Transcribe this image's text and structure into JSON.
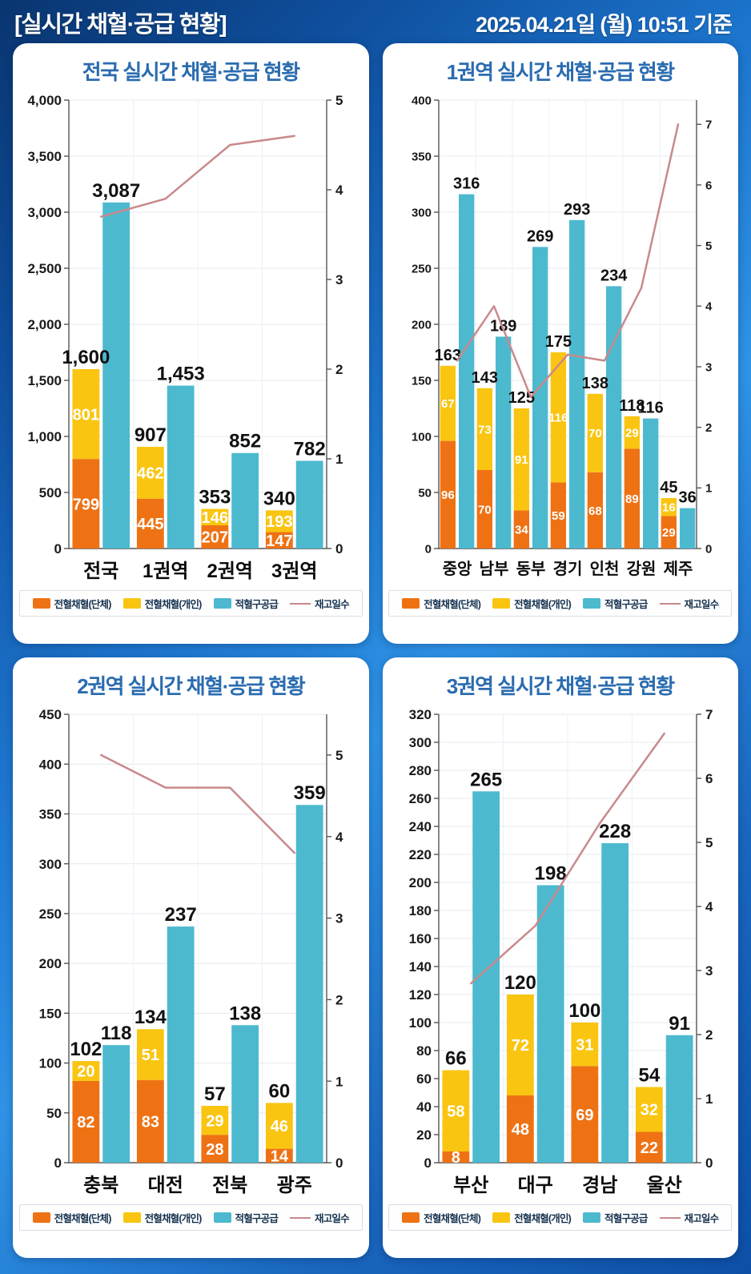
{
  "header": {
    "title": "[실시간 채혈·공급 현황]",
    "datetime": "2025.04.21일 (월) 10:51 기준"
  },
  "colors": {
    "group_collection": "#ee7214",
    "individual_collection": "#f9c511",
    "rbc_supply": "#4cb9cf",
    "stock_days_line": "#c9898b",
    "panel_title": "#2b6cb0",
    "background_blue": "#1c74cc"
  },
  "legend": {
    "items": [
      {
        "label": "전혈채혈(단체)",
        "color": "#ee7214",
        "type": "swatch"
      },
      {
        "label": "전혈채혈(개인)",
        "color": "#f9c511",
        "type": "swatch"
      },
      {
        "label": "적혈구공급",
        "color": "#4cb9cf",
        "type": "swatch"
      },
      {
        "label": "재고일수",
        "color": "#c9898b",
        "type": "line"
      }
    ]
  },
  "charts": [
    {
      "title": "전국 실시간 채혈·공급 현황",
      "chart_data": {
        "type": "bar",
        "subtype": "stacked-bar + bar + line(right axis)",
        "categories": [
          "전국",
          "1권역",
          "2권역",
          "3권역"
        ],
        "left_axis": {
          "min": 0,
          "max": 4000,
          "tick_values": [
            0,
            500,
            1000,
            1500,
            2000,
            2500,
            3000,
            3500,
            4000
          ],
          "tick_labels": [
            "0",
            "500",
            "1,000",
            "1,500",
            "2,000",
            "2,500",
            "3,000",
            "3,500",
            "4,000"
          ]
        },
        "right_axis": {
          "min": 0,
          "max": 5,
          "tick_values": [
            0,
            1,
            2,
            3,
            4,
            5
          ]
        },
        "series": [
          {
            "name": "전혈채혈(단체)",
            "type": "bar",
            "stack": "whole-blood",
            "color": "#ee7214",
            "values": [
              799,
              445,
              207,
              147
            ],
            "labels": [
              "799",
              "445",
              "207",
              "147"
            ]
          },
          {
            "name": "전혈채혈(개인)",
            "type": "bar",
            "stack": "whole-blood",
            "color": "#f9c511",
            "values": [
              801,
              462,
              146,
              193
            ],
            "labels": [
              "801",
              "462",
              "146",
              "193"
            ]
          },
          {
            "name": "적혈구공급",
            "type": "bar",
            "color": "#4cb9cf",
            "values": [
              3087,
              1453,
              852,
              782
            ],
            "labels": [
              "3,087",
              "1,453",
              "852",
              "782"
            ]
          },
          {
            "name": "재고일수",
            "type": "line",
            "axis": "right",
            "color": "#c9898b",
            "values": [
              3.7,
              3.9,
              4.5,
              4.6
            ]
          }
        ],
        "stack_total_labels": [
          "1,600",
          "907",
          "353",
          "340"
        ]
      }
    },
    {
      "title": "1권역 실시간 채혈·공급 현황",
      "chart_data": {
        "type": "bar",
        "subtype": "stacked-bar + bar + line(right axis)",
        "categories": [
          "중앙",
          "남부",
          "동부",
          "경기",
          "인천",
          "강원",
          "제주"
        ],
        "left_axis": {
          "min": 0,
          "max": 400,
          "tick_values": [
            0,
            50,
            100,
            150,
            200,
            250,
            300,
            350,
            400
          ],
          "tick_labels": [
            "0",
            "50",
            "100",
            "150",
            "200",
            "250",
            "300",
            "350",
            "400"
          ]
        },
        "right_axis": {
          "min": 0,
          "max": 7.4,
          "tick_values": [
            0,
            1,
            2,
            3,
            4,
            5,
            6,
            7
          ]
        },
        "series": [
          {
            "name": "전혈채혈(단체)",
            "type": "bar",
            "stack": "whole-blood",
            "color": "#ee7214",
            "values": [
              96,
              70,
              34,
              59,
              68,
              89,
              29
            ],
            "labels": [
              "96",
              "70",
              "34",
              "59",
              "68",
              "89",
              "29"
            ]
          },
          {
            "name": "전혈채혈(개인)",
            "type": "bar",
            "stack": "whole-blood",
            "color": "#f9c511",
            "values": [
              67,
              73,
              91,
              116,
              70,
              29,
              16
            ],
            "labels": [
              "67",
              "73",
              "91",
              "116",
              "70",
              "29",
              "16"
            ]
          },
          {
            "name": "적혈구공급",
            "type": "bar",
            "color": "#4cb9cf",
            "values": [
              316,
              189,
              269,
              293,
              234,
              116,
              36
            ],
            "labels": [
              "316",
              "189",
              "269",
              "293",
              "234",
              "116",
              "36"
            ]
          },
          {
            "name": "재고일수",
            "type": "line",
            "axis": "right",
            "color": "#c9898b",
            "values": [
              3.1,
              4.0,
              2.5,
              3.2,
              3.1,
              4.3,
              7.0
            ]
          }
        ],
        "stack_total_labels": [
          "163",
          "143",
          "125",
          "175",
          "138",
          "118",
          "45"
        ]
      }
    },
    {
      "title": "2권역 실시간 채혈·공급 현황",
      "chart_data": {
        "type": "bar",
        "subtype": "stacked-bar + bar + line(right axis)",
        "categories": [
          "충북",
          "대전",
          "전북",
          "광주"
        ],
        "left_axis": {
          "min": 0,
          "max": 450,
          "tick_values": [
            0,
            50,
            100,
            150,
            200,
            250,
            300,
            350,
            400,
            450
          ],
          "tick_labels": [
            "0",
            "50",
            "100",
            "150",
            "200",
            "250",
            "300",
            "350",
            "400",
            "450"
          ]
        },
        "right_axis": {
          "min": 0,
          "max": 5.5,
          "tick_values": [
            0,
            1,
            2,
            3,
            4,
            5
          ]
        },
        "series": [
          {
            "name": "전혈채혈(단체)",
            "type": "bar",
            "stack": "whole-blood",
            "color": "#ee7214",
            "values": [
              82,
              83,
              28,
              14
            ],
            "labels": [
              "82",
              "83",
              "28",
              "14"
            ]
          },
          {
            "name": "전혈채혈(개인)",
            "type": "bar",
            "stack": "whole-blood",
            "color": "#f9c511",
            "values": [
              20,
              51,
              29,
              46
            ],
            "labels": [
              "20",
              "51",
              "29",
              "46"
            ]
          },
          {
            "name": "적혈구공급",
            "type": "bar",
            "color": "#4cb9cf",
            "values": [
              118,
              237,
              138,
              359
            ],
            "labels": [
              "118",
              "237",
              "138",
              "359"
            ]
          },
          {
            "name": "재고일수",
            "type": "line",
            "axis": "right",
            "color": "#c9898b",
            "values": [
              5.0,
              4.6,
              4.6,
              3.8
            ]
          }
        ],
        "stack_total_labels": [
          "102",
          "134",
          "57",
          "60"
        ]
      }
    },
    {
      "title": "3권역 실시간 채혈·공급 현황",
      "chart_data": {
        "type": "bar",
        "subtype": "stacked-bar + bar + line(right axis)",
        "categories": [
          "부산",
          "대구",
          "경남",
          "울산"
        ],
        "left_axis": {
          "min": 0,
          "max": 320,
          "tick_values": [
            0,
            20,
            40,
            60,
            80,
            100,
            120,
            140,
            160,
            180,
            200,
            220,
            240,
            260,
            280,
            300,
            320
          ],
          "tick_labels": [
            "0",
            "20",
            "40",
            "60",
            "80",
            "100",
            "120",
            "140",
            "160",
            "180",
            "200",
            "220",
            "240",
            "260",
            "280",
            "300",
            "320"
          ]
        },
        "right_axis": {
          "min": 0,
          "max": 7,
          "tick_values": [
            0,
            1,
            2,
            3,
            4,
            5,
            6,
            7
          ]
        },
        "series": [
          {
            "name": "전혈채혈(단체)",
            "type": "bar",
            "stack": "whole-blood",
            "color": "#ee7214",
            "values": [
              8,
              48,
              69,
              22
            ],
            "labels": [
              "8",
              "48",
              "69",
              "22"
            ]
          },
          {
            "name": "전혈채혈(개인)",
            "type": "bar",
            "stack": "whole-blood",
            "color": "#f9c511",
            "values": [
              58,
              72,
              31,
              32
            ],
            "labels": [
              "58",
              "72",
              "31",
              "32"
            ]
          },
          {
            "name": "적혈구공급",
            "type": "bar",
            "color": "#4cb9cf",
            "values": [
              265,
              198,
              228,
              91
            ],
            "labels": [
              "265",
              "198",
              "228",
              "91"
            ]
          },
          {
            "name": "재고일수",
            "type": "line",
            "axis": "right",
            "color": "#c9898b",
            "values": [
              2.8,
              3.7,
              5.3,
              6.7
            ]
          }
        ],
        "stack_total_labels": [
          "66",
          "120",
          "100",
          "54"
        ]
      }
    }
  ]
}
